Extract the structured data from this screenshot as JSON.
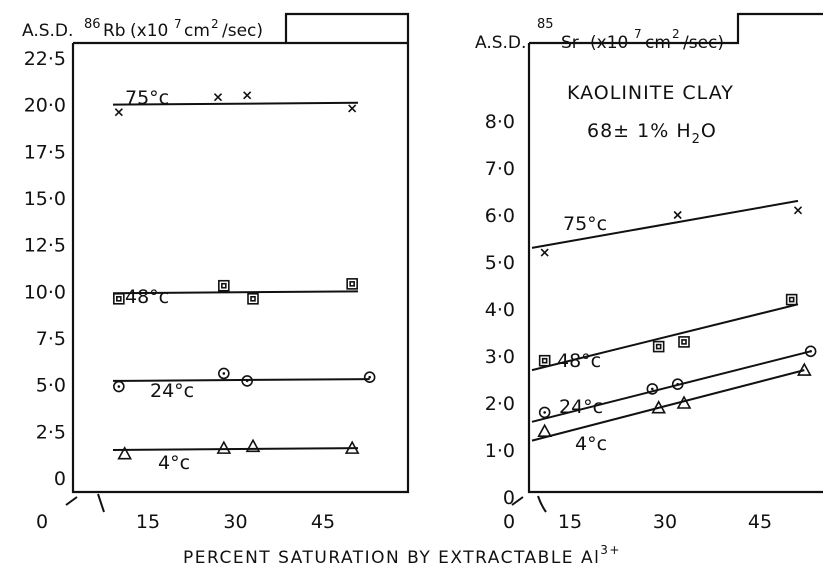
{
  "chart_data": [
    {
      "type": "scatter",
      "title_prefix": "A.S.D.",
      "title_isotope_mass": "86",
      "title_isotope": "Rb",
      "title_units": "(x10",
      "title_exp": "7",
      "title_units2": "cm",
      "title_sq": "2",
      "title_units3": "/sec)",
      "x_break_label": "0",
      "xlim": [
        5,
        52
      ],
      "ylim": [
        0,
        23
      ],
      "x_ticks": [
        "15",
        "30",
        "45"
      ],
      "y_ticks": [
        "0",
        "2·5",
        "5·0",
        "7·5",
        "10·0",
        "12·5",
        "15·0",
        "17·5",
        "20·0",
        "22·5"
      ],
      "y_tick_values": [
        0,
        2.5,
        5,
        7.5,
        10,
        12.5,
        15,
        17.5,
        20,
        22.5
      ],
      "series": [
        {
          "name": "75°c",
          "marker": "x",
          "x": [
            10,
            27,
            32,
            50
          ],
          "y": [
            19.6,
            20.4,
            20.5,
            19.8
          ],
          "fit": [
            [
              9,
              20.0
            ],
            [
              51,
              20.1
            ]
          ]
        },
        {
          "name": "48°c",
          "marker": "square",
          "x": [
            10,
            28,
            33,
            50
          ],
          "y": [
            9.6,
            10.3,
            9.6,
            10.4
          ],
          "fit": [
            [
              9,
              9.9
            ],
            [
              51,
              10.0
            ]
          ]
        },
        {
          "name": "24°c",
          "marker": "circle",
          "x": [
            10,
            28,
            32,
            53
          ],
          "y": [
            4.9,
            5.6,
            5.2,
            5.4
          ],
          "fit": [
            [
              9,
              5.2
            ],
            [
              53,
              5.3
            ]
          ]
        },
        {
          "name": "4°c",
          "marker": "triangle",
          "x": [
            11,
            28,
            33,
            50
          ],
          "y": [
            1.3,
            1.6,
            1.7,
            1.6
          ],
          "fit": [
            [
              9,
              1.5
            ],
            [
              51,
              1.6
            ]
          ]
        }
      ]
    },
    {
      "type": "scatter",
      "title_prefix": "A.S.D.",
      "title_isotope_mass": "85",
      "title_isotope": "Sr",
      "title_units": "(x10",
      "title_exp": "7",
      "title_units2": "cm",
      "title_sq": "2",
      "title_units3": "/sec)",
      "annotation_line1": "KAOLINITE  CLAY",
      "annotation_line2_a": "68± 1% H",
      "annotation_line2_sub": "2",
      "annotation_line2_b": "O",
      "x_break_label": "0",
      "xlim": [
        5,
        52
      ],
      "ylim": [
        0,
        10
      ],
      "x_ticks": [
        "15",
        "30",
        "45"
      ],
      "y_ticks": [
        "0",
        "1·0",
        "2·0",
        "3·0",
        "4·0",
        "5·0",
        "6·0",
        "7·0",
        "8·0"
      ],
      "y_tick_values": [
        0,
        1,
        2,
        3,
        4,
        5,
        6,
        7,
        8
      ],
      "series": [
        {
          "name": "75°c",
          "marker": "x",
          "x": [
            11,
            32,
            51
          ],
          "y": [
            5.2,
            6.0,
            6.1
          ],
          "fit": [
            [
              9,
              5.3
            ],
            [
              51,
              6.3
            ]
          ]
        },
        {
          "name": "48°c",
          "marker": "square",
          "x": [
            11,
            29,
            33,
            50
          ],
          "y": [
            2.9,
            3.2,
            3.3,
            4.2
          ],
          "fit": [
            [
              9,
              2.7
            ],
            [
              51,
              4.1
            ]
          ]
        },
        {
          "name": "24°c",
          "marker": "circle",
          "x": [
            11,
            28,
            32,
            53
          ],
          "y": [
            1.8,
            2.3,
            2.4,
            3.1
          ],
          "fit": [
            [
              9,
              1.6
            ],
            [
              53,
              3.1
            ]
          ]
        },
        {
          "name": "4°c",
          "marker": "triangle",
          "x": [
            11,
            29,
            33,
            52
          ],
          "y": [
            1.4,
            1.9,
            2.0,
            2.7
          ],
          "fit": [
            [
              9,
              1.2
            ],
            [
              52,
              2.7
            ]
          ]
        }
      ]
    }
  ],
  "xlabel_main": "PERCENT   SATURATION   BY   EXTRACTABLE   Al",
  "xlabel_sup": "3+",
  "x_axis_zero_left": "0",
  "x_axis_zero_right": "0"
}
